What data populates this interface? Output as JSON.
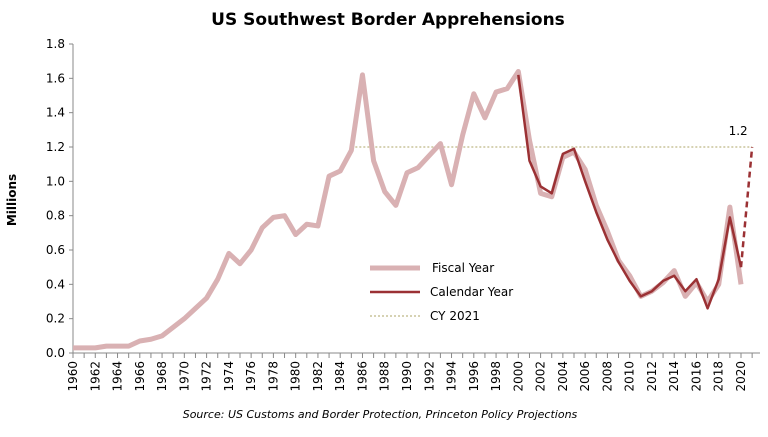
{
  "chart_data": {
    "type": "line",
    "title": "US Southwest Border Apprehensions",
    "ylabel": "Millions",
    "xlabel": "",
    "source": "Source: US Customs and Border Protection, Princeton Policy Projections",
    "ylim": [
      0,
      1.8
    ],
    "yticks": [
      "0.0",
      "0.2",
      "0.4",
      "0.6",
      "0.8",
      "1.0",
      "1.2",
      "1.4",
      "1.6",
      "1.8"
    ],
    "xlim": [
      1960,
      2021
    ],
    "grid": false,
    "legend_position": "center-right",
    "series": [
      {
        "name": "Fiscal Year",
        "color": "#d9b1b3",
        "x_start": 1960,
        "values": [
          0.03,
          0.03,
          0.03,
          0.04,
          0.04,
          0.04,
          0.07,
          0.08,
          0.1,
          0.15,
          0.2,
          0.26,
          0.32,
          0.43,
          0.58,
          0.52,
          0.6,
          0.73,
          0.79,
          0.8,
          0.69,
          0.75,
          0.74,
          1.03,
          1.06,
          1.18,
          1.62,
          1.12,
          0.94,
          0.86,
          1.05,
          1.08,
          1.15,
          1.22,
          0.98,
          1.27,
          1.51,
          1.37,
          1.52,
          1.54,
          1.64,
          1.24,
          0.93,
          0.91,
          1.14,
          1.17,
          1.07,
          0.86,
          0.71,
          0.54,
          0.45,
          0.33,
          0.36,
          0.41,
          0.48,
          0.33,
          0.41,
          0.3,
          0.4,
          0.85,
          0.4
        ]
      },
      {
        "name": "Calendar Year",
        "color": "#9b3134",
        "x_start": 2000,
        "values": [
          1.62,
          1.12,
          0.97,
          0.93,
          1.16,
          1.19,
          1.0,
          0.82,
          0.66,
          0.53,
          0.42,
          0.33,
          0.36,
          0.42,
          0.45,
          0.36,
          0.43,
          0.26,
          0.43,
          0.79,
          0.5
        ]
      },
      {
        "name": "Calendar Year Projection",
        "color": "#9b3134",
        "dashed": true,
        "x": [
          2020,
          2021
        ],
        "values": [
          0.5,
          1.2
        ]
      },
      {
        "name": "CY 2021",
        "color": "#c9c49a",
        "dotted": true,
        "x": [
          1985,
          2021
        ],
        "values": [
          1.2,
          1.2
        ]
      }
    ],
    "annotations": [
      {
        "text": "1.2",
        "x": 2021,
        "y": 1.2
      }
    ]
  }
}
